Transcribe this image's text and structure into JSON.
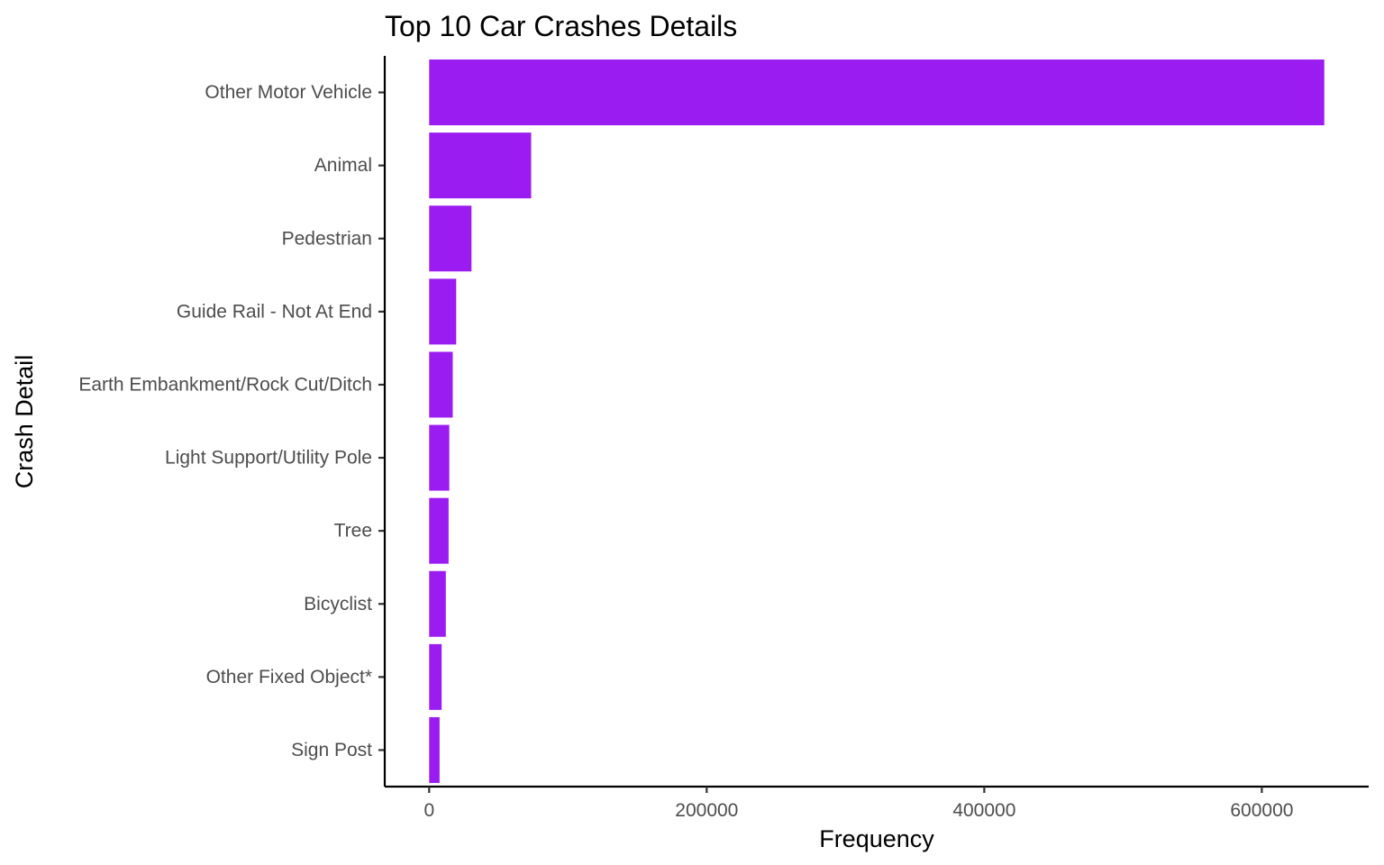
{
  "chart_data": {
    "type": "bar",
    "orientation": "horizontal",
    "title": "Top 10 Car Crashes Details",
    "xlabel": "Frequency",
    "ylabel": "Crash Detail",
    "categories": [
      "Other Motor Vehicle",
      "Animal",
      "Pedestrian",
      "Guide Rail - Not At End",
      "Earth Embankment/Rock Cut/Ditch",
      "Light Support/Utility Pole",
      "Tree",
      "Bicyclist",
      "Other Fixed Object*",
      "Sign Post"
    ],
    "values": [
      645000,
      73500,
      30500,
      19500,
      17000,
      14500,
      14000,
      12000,
      9000,
      7500
    ],
    "x_ticks": [
      0,
      200000,
      400000,
      600000
    ],
    "x_tick_labels": [
      "0",
      "200000",
      "400000",
      "600000"
    ],
    "xlim": [
      -32000,
      677000
    ],
    "grid": false,
    "legend": "none",
    "colors": {
      "bar": "#9a1cf0",
      "axis": "#000000",
      "tick_label": "#4d4d4d"
    }
  }
}
